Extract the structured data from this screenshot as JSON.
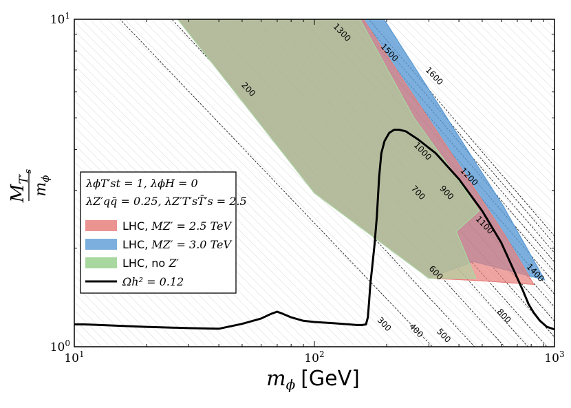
{
  "chart_data": {
    "type": "area",
    "x_scale": "log",
    "y_scale": "log",
    "xlim": [
      10,
      1000
    ],
    "ylim": [
      1,
      10
    ],
    "xlabel_math": "m",
    "xlabel_sub": "ϕ",
    "xlabel_unit": "[GeV]",
    "ylabel_num": "M",
    "ylabel_num_sub": "T′",
    "ylabel_num_subsub": "s",
    "ylabel_den": "m",
    "ylabel_den_sub": "ϕ",
    "x_ticks": [
      {
        "value": 10,
        "base": "10",
        "exp": "1"
      },
      {
        "value": 100,
        "base": "10",
        "exp": "2"
      },
      {
        "value": 1000,
        "base": "10",
        "exp": "3"
      }
    ],
    "y_ticks": [
      {
        "value": 1,
        "base": "10",
        "exp": "0"
      },
      {
        "value": 10,
        "base": "10",
        "exp": "1"
      }
    ],
    "hatched_background": true,
    "legend": {
      "position": "center-left",
      "couplings_line1": "λϕT′st = 1,  λϕH = 0",
      "couplings_line2": "λZ′qq̄ = 0.25,  λZ′T′sT̄′s = 2.5",
      "entries": [
        {
          "label": "LHC, M_Z′ = 2.5 TeV",
          "text": "LHC, ",
          "math": "MZ′ = 2.5 TeV",
          "color": "#e8807c",
          "kind": "patch"
        },
        {
          "label": "LHC, M_Z′ = 3.0 TeV",
          "text": "LHC, ",
          "math": "MZ′ = 3.0 TeV",
          "color": "#5b9bd5",
          "kind": "patch"
        },
        {
          "label": "LHC, no Z′",
          "text": "LHC, no ",
          "math": "Z′",
          "color": "#a8d8a0",
          "kind": "patch"
        },
        {
          "label": "Ωh² = 0.12",
          "text": "",
          "math": "Ωh² = 0.12",
          "color": "#000000",
          "kind": "line"
        }
      ]
    },
    "series": [
      {
        "name": "LHC, M_Z′ = 3.0 TeV",
        "color": "#5b9bd5",
        "opacity": 0.8,
        "points": [
          [
            35,
            10
          ],
          [
            195,
            10
          ],
          [
            610,
            2.7
          ],
          [
            910,
            1.6
          ],
          [
            460,
            1.82
          ],
          [
            300,
            1.62
          ],
          [
            100,
            2.95
          ],
          [
            27,
            10
          ]
        ]
      },
      {
        "name": "LHC, M_Z′ = 2.5 TeV",
        "color": "#e8807c",
        "opacity": 0.7,
        "points": [
          [
            27,
            10
          ],
          [
            160,
            10
          ],
          [
            620,
            2.2
          ],
          [
            820,
            1.55
          ],
          [
            500,
            1.59
          ],
          [
            300,
            1.62
          ],
          [
            100,
            2.95
          ]
        ]
      },
      {
        "name": "LHC, no Z′",
        "color": "#a8d8a0",
        "opacity": 0.6,
        "points": [
          [
            27,
            10
          ],
          [
            155,
            10
          ],
          [
            260,
            5.0
          ],
          [
            380,
            3.4
          ],
          [
            485,
            2.6
          ],
          [
            390,
            2.25
          ],
          [
            470,
            1.62
          ],
          [
            300,
            1.62
          ],
          [
            100,
            2.95
          ]
        ]
      }
    ],
    "relic_curve": {
      "name": "Ωh² = 0.12",
      "color": "#000000",
      "points": [
        [
          10,
          1.17
        ],
        [
          11,
          1.17
        ],
        [
          20,
          1.15
        ],
        [
          30,
          1.14
        ],
        [
          40,
          1.135
        ],
        [
          50,
          1.175
        ],
        [
          60,
          1.22
        ],
        [
          66,
          1.26
        ],
        [
          70,
          1.28
        ],
        [
          74,
          1.26
        ],
        [
          80,
          1.23
        ],
        [
          90,
          1.2
        ],
        [
          100,
          1.19
        ],
        [
          120,
          1.18
        ],
        [
          140,
          1.17
        ],
        [
          150,
          1.165
        ],
        [
          158,
          1.165
        ],
        [
          164,
          1.17
        ],
        [
          167,
          1.23
        ],
        [
          169,
          1.37
        ],
        [
          171,
          1.55
        ],
        [
          174,
          1.75
        ],
        [
          178,
          2.05
        ],
        [
          182,
          2.5
        ],
        [
          186,
          3.3
        ],
        [
          190,
          3.9
        ],
        [
          196,
          4.25
        ],
        [
          205,
          4.5
        ],
        [
          215,
          4.6
        ],
        [
          225,
          4.6
        ],
        [
          240,
          4.55
        ],
        [
          270,
          4.3
        ],
        [
          320,
          3.9
        ],
        [
          400,
          3.25
        ],
        [
          500,
          2.6
        ],
        [
          600,
          2.08
        ],
        [
          680,
          1.7
        ],
        [
          740,
          1.48
        ],
        [
          780,
          1.35
        ],
        [
          820,
          1.27
        ],
        [
          870,
          1.2
        ],
        [
          930,
          1.15
        ],
        [
          1000,
          1.13
        ]
      ]
    },
    "contours": [
      {
        "label": "200",
        "points": [
          [
            10,
            14.0
          ],
          [
            310,
            1.0
          ]
        ]
      },
      {
        "label": "300",
        "points": [
          [
            10,
            21.0
          ],
          [
            465,
            1.0
          ]
        ]
      },
      {
        "label": "400",
        "points": [
          [
            10,
            28.0
          ],
          [
            620,
            1.0
          ]
        ]
      },
      {
        "label": "500",
        "points": [
          [
            10,
            35.0
          ],
          [
            775,
            1.0
          ]
        ]
      },
      {
        "label": "600",
        "points": [
          [
            10,
            42.0
          ],
          [
            930,
            1.0
          ]
        ]
      },
      {
        "label": "700",
        "points": [
          [
            10,
            49.0
          ],
          [
            1085,
            1.0
          ]
        ]
      },
      {
        "label": "800",
        "points": [
          [
            10,
            56.0
          ],
          [
            1240,
            1.0
          ]
        ]
      },
      {
        "label": "900",
        "points": [
          [
            10,
            63.0
          ],
          [
            1395,
            1.0
          ]
        ]
      },
      {
        "label": "1000",
        "points": [
          [
            10,
            70.0
          ],
          [
            1550,
            1.0
          ]
        ]
      },
      {
        "label": "1100",
        "points": [
          [
            10,
            77.0
          ],
          [
            1705,
            1.0
          ]
        ]
      },
      {
        "label": "1200",
        "points": [
          [
            10,
            84.0
          ],
          [
            1860,
            1.0
          ]
        ]
      },
      {
        "label": "1300",
        "points": [
          [
            10,
            91.0
          ],
          [
            2015,
            1.0
          ]
        ]
      },
      {
        "label": "1400",
        "points": [
          [
            10,
            98.0
          ],
          [
            2170,
            1.0
          ]
        ]
      },
      {
        "label": "1500",
        "points": [
          [
            10,
            105.0
          ],
          [
            2325,
            1.0
          ]
        ]
      },
      {
        "label": "1600",
        "points": [
          [
            10,
            112.0
          ],
          [
            2480,
            1.0
          ]
        ]
      }
    ],
    "contour_labels": [
      {
        "text": "200",
        "x": 53,
        "y": 6.1
      },
      {
        "text": "300",
        "x": 195,
        "y": 1.17
      },
      {
        "text": "400",
        "x": 265,
        "y": 1.12
      },
      {
        "text": "500",
        "x": 345,
        "y": 1.08
      },
      {
        "text": "600",
        "x": 320,
        "y": 1.68
      },
      {
        "text": "700",
        "x": 270,
        "y": 2.95
      },
      {
        "text": "800",
        "x": 615,
        "y": 1.24
      },
      {
        "text": "900",
        "x": 355,
        "y": 2.95
      },
      {
        "text": "1000",
        "x": 282,
        "y": 3.95
      },
      {
        "text": "1100",
        "x": 510,
        "y": 2.35
      },
      {
        "text": "1200",
        "x": 440,
        "y": 3.3
      },
      {
        "text": "1300",
        "x": 130,
        "y": 9.1
      },
      {
        "text": "1400",
        "x": 830,
        "y": 1.68
      },
      {
        "text": "1500",
        "x": 205,
        "y": 7.9
      },
      {
        "text": "1600",
        "x": 315,
        "y": 6.7
      }
    ]
  }
}
